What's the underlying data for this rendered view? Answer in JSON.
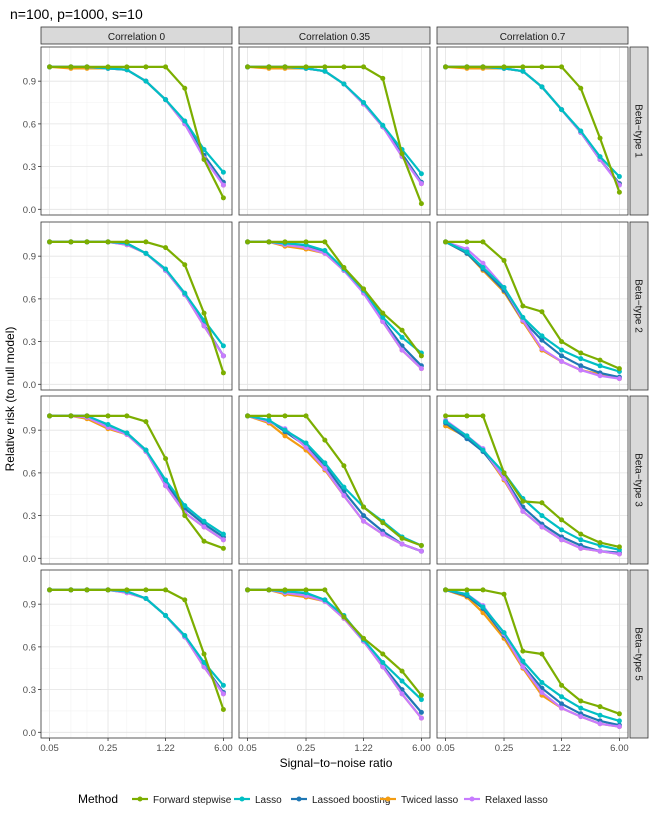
{
  "chart_data": {
    "type": "line",
    "title": "n=100, p=1000, s=10",
    "xlabel": "Signal−to−noise ratio",
    "ylabel": "Relative risk (to null model)",
    "x": [
      0.05,
      0.09,
      0.14,
      0.25,
      0.42,
      0.71,
      1.22,
      2.07,
      3.52,
      6.0
    ],
    "x_tick_labels": [
      "0.05",
      "0.25",
      "1.22",
      "6.00"
    ],
    "x_tick_values": [
      0.05,
      0.25,
      1.22,
      6.0
    ],
    "y_tick_labels": [
      "0.0",
      "0.3",
      "0.6",
      "0.9"
    ],
    "y_tick_values": [
      0.0,
      0.3,
      0.6,
      0.9
    ],
    "ylim": [
      -0.04,
      1.14
    ],
    "columns": [
      "Correlation 0",
      "Correlation 0.35",
      "Correlation 0.7"
    ],
    "rows": [
      "Beta−type 1",
      "Beta−type 2",
      "Beta−type 3",
      "Beta−type 5"
    ],
    "legend_title": "Method",
    "legend_position": "bottom",
    "methods": [
      {
        "name": "Forward stepwise",
        "color": "#7cae00"
      },
      {
        "name": "Lasso",
        "color": "#00bfc4"
      },
      {
        "name": "Lassoed boosting",
        "color": "#1f77b4"
      },
      {
        "name": "Twiced lasso",
        "color": "#f39c12"
      },
      {
        "name": "Relaxed lasso",
        "color": "#c77cff"
      }
    ],
    "panels": [
      [
        {
          "series": [
            [
              1.0,
              1.0,
              1.0,
              1.0,
              1.0,
              1.0,
              1.0,
              0.85,
              0.35,
              0.08
            ],
            [
              1.0,
              1.0,
              1.0,
              0.99,
              0.98,
              0.9,
              0.77,
              0.62,
              0.42,
              0.26
            ],
            [
              1.0,
              1.0,
              1.0,
              0.99,
              0.98,
              0.9,
              0.77,
              0.61,
              0.38,
              0.19
            ],
            [
              1.0,
              0.99,
              0.99,
              0.99,
              0.98,
              0.9,
              0.77,
              0.6,
              0.37,
              0.17
            ],
            [
              1.0,
              1.0,
              1.0,
              0.99,
              0.98,
              0.9,
              0.77,
              0.6,
              0.36,
              0.17
            ]
          ]
        },
        {
          "series": [
            [
              1.0,
              1.0,
              1.0,
              1.0,
              1.0,
              1.0,
              1.0,
              0.92,
              0.39,
              0.04
            ],
            [
              1.0,
              1.0,
              1.0,
              0.99,
              0.97,
              0.88,
              0.75,
              0.59,
              0.42,
              0.25
            ],
            [
              1.0,
              1.0,
              1.0,
              0.99,
              0.97,
              0.88,
              0.74,
              0.58,
              0.39,
              0.19
            ],
            [
              1.0,
              0.99,
              0.99,
              0.99,
              0.97,
              0.88,
              0.74,
              0.58,
              0.38,
              0.18
            ],
            [
              1.0,
              1.0,
              1.0,
              0.99,
              0.97,
              0.88,
              0.74,
              0.58,
              0.37,
              0.18
            ]
          ]
        },
        {
          "series": [
            [
              1.0,
              1.0,
              1.0,
              1.0,
              1.0,
              1.0,
              1.0,
              0.85,
              0.5,
              0.12
            ],
            [
              1.0,
              1.0,
              1.0,
              0.99,
              0.97,
              0.86,
              0.7,
              0.55,
              0.37,
              0.23
            ],
            [
              1.0,
              1.0,
              1.0,
              0.99,
              0.97,
              0.86,
              0.7,
              0.54,
              0.35,
              0.18
            ],
            [
              1.0,
              0.99,
              0.99,
              0.99,
              0.97,
              0.86,
              0.7,
              0.54,
              0.35,
              0.18
            ],
            [
              1.0,
              1.0,
              1.0,
              0.99,
              0.97,
              0.86,
              0.7,
              0.54,
              0.35,
              0.17
            ]
          ]
        }
      ],
      [
        {
          "series": [
            [
              1.0,
              1.0,
              1.0,
              1.0,
              1.0,
              1.0,
              0.96,
              0.84,
              0.5,
              0.08
            ],
            [
              1.0,
              1.0,
              1.0,
              1.0,
              0.99,
              0.92,
              0.81,
              0.64,
              0.45,
              0.27
            ],
            [
              1.0,
              1.0,
              1.0,
              1.0,
              0.99,
              0.92,
              0.8,
              0.63,
              0.42,
              0.2
            ],
            [
              1.0,
              1.0,
              1.0,
              1.0,
              0.98,
              0.92,
              0.8,
              0.63,
              0.41,
              0.2
            ],
            [
              1.0,
              1.0,
              1.0,
              1.0,
              0.98,
              0.92,
              0.8,
              0.63,
              0.41,
              0.2
            ]
          ]
        },
        {
          "series": [
            [
              1.0,
              1.0,
              1.0,
              1.0,
              1.0,
              0.82,
              0.67,
              0.5,
              0.38,
              0.2
            ],
            [
              1.0,
              1.0,
              0.99,
              0.98,
              0.94,
              0.81,
              0.66,
              0.47,
              0.33,
              0.22
            ],
            [
              1.0,
              1.0,
              0.99,
              0.97,
              0.93,
              0.8,
              0.65,
              0.45,
              0.27,
              0.13
            ],
            [
              1.0,
              1.0,
              0.97,
              0.95,
              0.92,
              0.8,
              0.65,
              0.44,
              0.24,
              0.11
            ],
            [
              1.0,
              1.0,
              0.98,
              0.96,
              0.92,
              0.8,
              0.64,
              0.44,
              0.24,
              0.11
            ]
          ]
        },
        {
          "series": [
            [
              1.0,
              1.0,
              1.0,
              0.87,
              0.55,
              0.51,
              0.3,
              0.22,
              0.17,
              0.11
            ],
            [
              1.0,
              0.93,
              0.82,
              0.68,
              0.47,
              0.34,
              0.24,
              0.18,
              0.13,
              0.09
            ],
            [
              1.0,
              0.92,
              0.81,
              0.66,
              0.45,
              0.31,
              0.2,
              0.13,
              0.08,
              0.05
            ],
            [
              1.0,
              0.92,
              0.8,
              0.65,
              0.44,
              0.24,
              0.16,
              0.1,
              0.07,
              0.04
            ],
            [
              1.0,
              0.95,
              0.85,
              0.68,
              0.45,
              0.25,
              0.16,
              0.1,
              0.06,
              0.04
            ]
          ]
        }
      ],
      [
        {
          "series": [
            [
              1.0,
              1.0,
              1.0,
              1.0,
              1.0,
              0.96,
              0.7,
              0.3,
              0.12,
              0.07
            ],
            [
              1.0,
              1.0,
              1.0,
              0.94,
              0.88,
              0.76,
              0.55,
              0.37,
              0.26,
              0.17
            ],
            [
              1.0,
              1.0,
              1.0,
              0.93,
              0.88,
              0.76,
              0.53,
              0.35,
              0.24,
              0.15
            ],
            [
              1.0,
              1.0,
              0.98,
              0.91,
              0.87,
              0.75,
              0.51,
              0.32,
              0.22,
              0.13
            ],
            [
              1.0,
              1.0,
              0.99,
              0.92,
              0.87,
              0.75,
              0.51,
              0.32,
              0.22,
              0.13
            ]
          ]
        },
        {
          "series": [
            [
              1.0,
              1.0,
              1.0,
              1.0,
              0.83,
              0.65,
              0.36,
              0.25,
              0.14,
              0.09
            ],
            [
              1.0,
              0.97,
              0.9,
              0.81,
              0.67,
              0.5,
              0.36,
              0.26,
              0.15,
              0.09
            ],
            [
              1.0,
              0.97,
              0.89,
              0.79,
              0.65,
              0.47,
              0.3,
              0.19,
              0.1,
              0.05
            ],
            [
              1.0,
              0.95,
              0.86,
              0.76,
              0.62,
              0.44,
              0.26,
              0.17,
              0.1,
              0.05
            ],
            [
              1.0,
              0.96,
              0.91,
              0.78,
              0.63,
              0.44,
              0.26,
              0.17,
              0.1,
              0.05
            ]
          ]
        },
        {
          "series": [
            [
              1.0,
              1.0,
              1.0,
              0.6,
              0.4,
              0.39,
              0.27,
              0.17,
              0.11,
              0.08
            ],
            [
              0.96,
              0.86,
              0.76,
              0.6,
              0.42,
              0.3,
              0.2,
              0.13,
              0.09,
              0.06
            ],
            [
              0.95,
              0.84,
              0.75,
              0.57,
              0.36,
              0.24,
              0.15,
              0.09,
              0.05,
              0.04
            ],
            [
              0.93,
              0.85,
              0.76,
              0.55,
              0.33,
              0.22,
              0.13,
              0.07,
              0.05,
              0.03
            ],
            [
              0.97,
              0.86,
              0.77,
              0.56,
              0.33,
              0.22,
              0.13,
              0.07,
              0.05,
              0.03
            ]
          ]
        }
      ],
      [
        {
          "series": [
            [
              1.0,
              1.0,
              1.0,
              1.0,
              1.0,
              1.0,
              1.0,
              0.93,
              0.55,
              0.16
            ],
            [
              1.0,
              1.0,
              1.0,
              1.0,
              0.99,
              0.94,
              0.82,
              0.68,
              0.49,
              0.33
            ],
            [
              1.0,
              1.0,
              1.0,
              1.0,
              0.99,
              0.94,
              0.82,
              0.67,
              0.47,
              0.28
            ],
            [
              1.0,
              1.0,
              1.0,
              1.0,
              0.98,
              0.94,
              0.82,
              0.67,
              0.46,
              0.27
            ],
            [
              1.0,
              1.0,
              1.0,
              1.0,
              0.98,
              0.94,
              0.82,
              0.67,
              0.46,
              0.27
            ]
          ]
        },
        {
          "series": [
            [
              1.0,
              1.0,
              1.0,
              1.0,
              1.0,
              0.81,
              0.66,
              0.55,
              0.43,
              0.26
            ],
            [
              1.0,
              1.0,
              0.99,
              0.98,
              0.93,
              0.82,
              0.65,
              0.49,
              0.36,
              0.23
            ],
            [
              1.0,
              1.0,
              0.99,
              0.97,
              0.93,
              0.81,
              0.64,
              0.47,
              0.3,
              0.14
            ],
            [
              1.0,
              1.0,
              0.97,
              0.95,
              0.92,
              0.8,
              0.64,
              0.46,
              0.27,
              0.1
            ],
            [
              1.0,
              1.0,
              0.98,
              0.96,
              0.92,
              0.8,
              0.64,
              0.46,
              0.27,
              0.1
            ]
          ]
        },
        {
          "series": [
            [
              1.0,
              1.0,
              1.0,
              0.97,
              0.57,
              0.55,
              0.33,
              0.22,
              0.18,
              0.13
            ],
            [
              1.0,
              0.97,
              0.88,
              0.7,
              0.5,
              0.35,
              0.25,
              0.17,
              0.12,
              0.08
            ],
            [
              1.0,
              0.96,
              0.87,
              0.68,
              0.47,
              0.31,
              0.2,
              0.13,
              0.08,
              0.05
            ],
            [
              1.0,
              0.95,
              0.84,
              0.66,
              0.45,
              0.26,
              0.17,
              0.11,
              0.06,
              0.04
            ],
            [
              1.0,
              0.97,
              0.89,
              0.69,
              0.46,
              0.28,
              0.17,
              0.11,
              0.06,
              0.04
            ]
          ]
        }
      ]
    ]
  }
}
